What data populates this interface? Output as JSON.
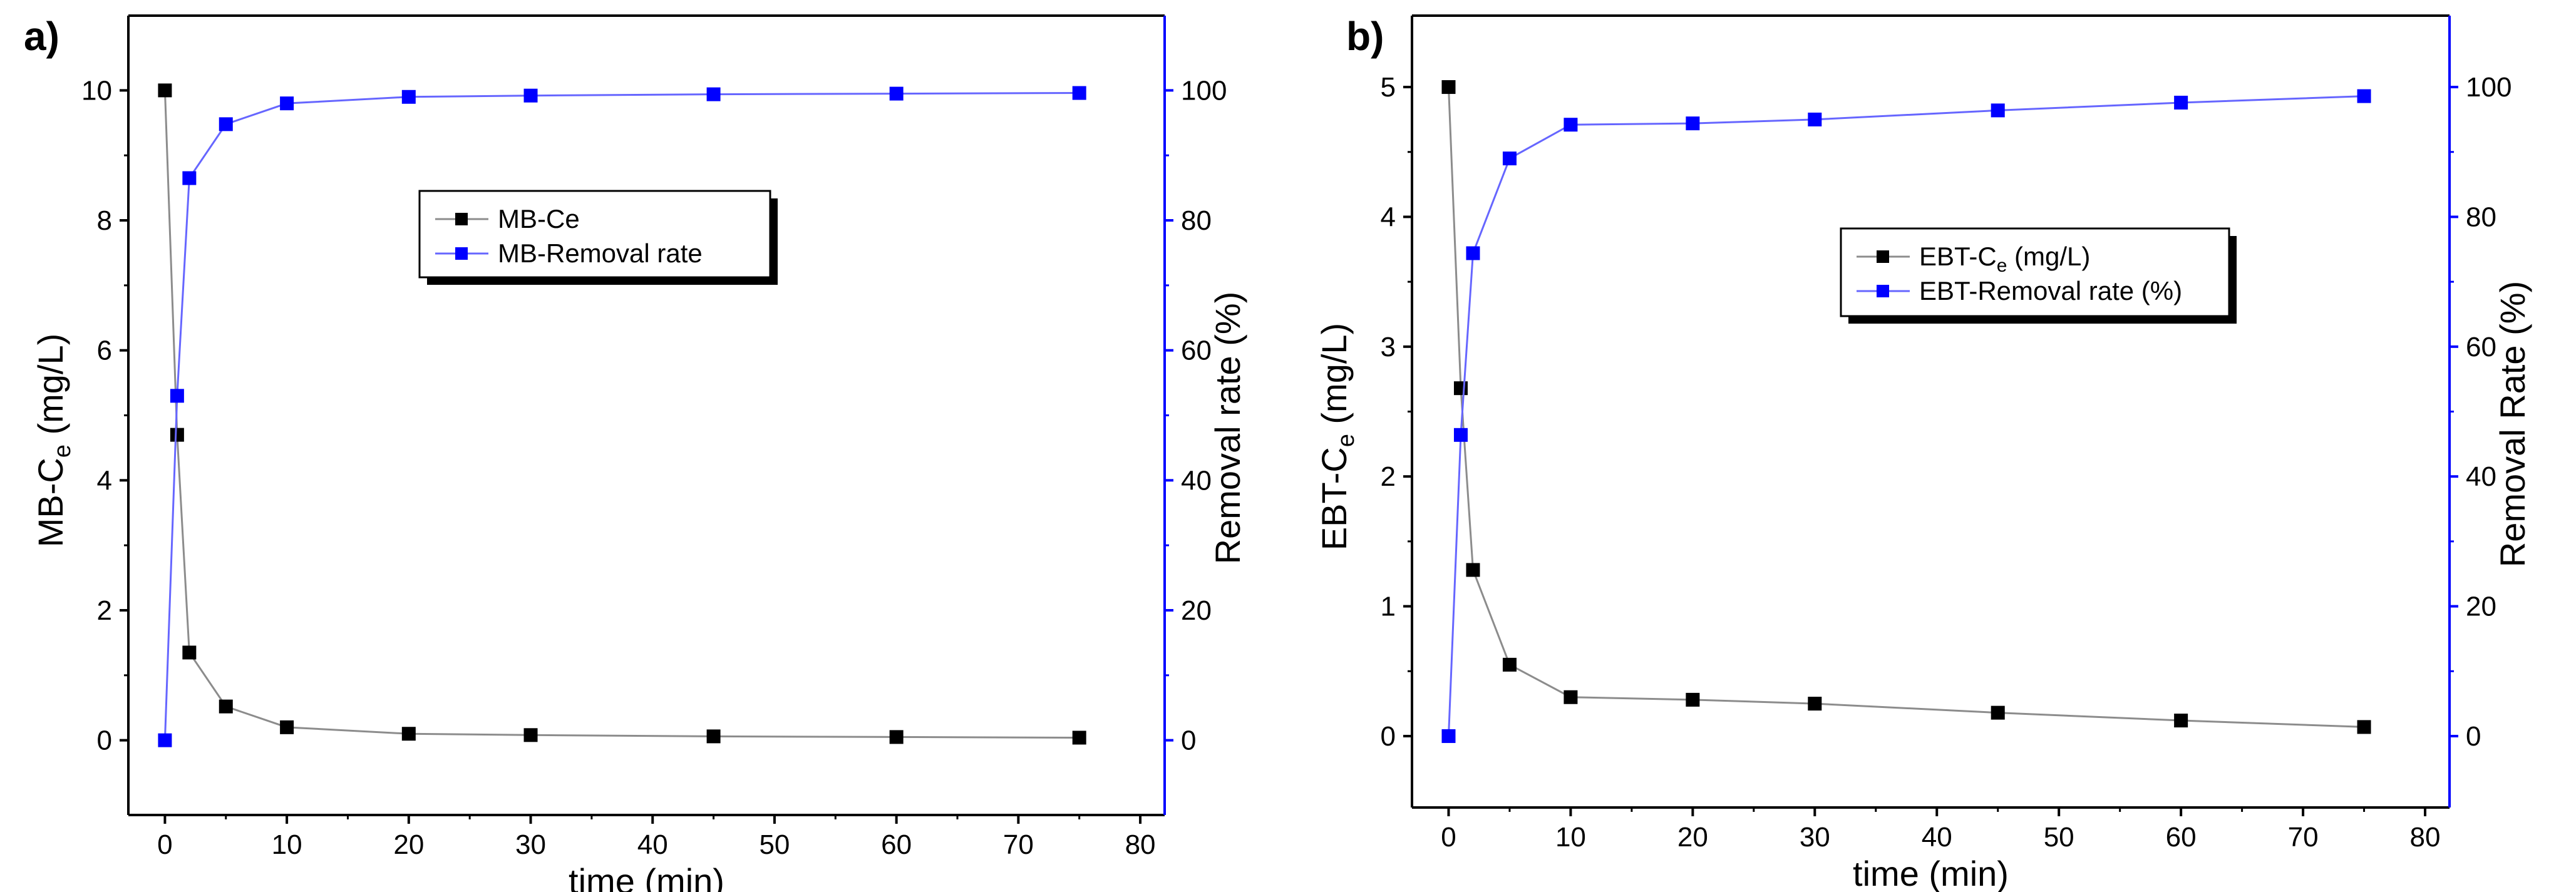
{
  "chart_data": [
    {
      "type": "line",
      "panel_label": "a)",
      "xlabel": "time (min)",
      "ylabel_prefix": "MB-C",
      "ylabel_sub": "e",
      "ylabel_suffix": " (mg/L)",
      "y2label": "Removal rate (%)",
      "xlim": [
        -3,
        82
      ],
      "ylim": [
        -1.15,
        11.15
      ],
      "y2lim": [
        -11.5,
        111.5
      ],
      "xticks": [
        0,
        10,
        20,
        30,
        40,
        50,
        60,
        70,
        80
      ],
      "yticks": [
        0,
        2,
        4,
        6,
        8,
        10
      ],
      "y2ticks": [
        0,
        20,
        40,
        60,
        80,
        100
      ],
      "x": [
        0,
        1,
        2,
        5,
        10,
        20,
        30,
        45,
        60,
        75
      ],
      "series": [
        {
          "name": "MB-Ce",
          "name_sub": "",
          "name_tail": "",
          "axis": "left",
          "color": "#000000",
          "line_color": "#8c8c8c",
          "values": [
            10,
            4.7,
            1.35,
            0.52,
            0.2,
            0.1,
            0.08,
            0.06,
            0.05,
            0.04
          ]
        },
        {
          "name": "MB-Removal rate",
          "name_sub": "",
          "name_tail": "",
          "axis": "right",
          "color": "#0000ff",
          "line_color": "#6666ff",
          "values": [
            0,
            53,
            86.5,
            94.8,
            98,
            99,
            99.2,
            99.4,
            99.5,
            99.6
          ]
        }
      ],
      "legend_placement": "upper-center"
    },
    {
      "type": "line",
      "panel_label": "b)",
      "xlabel": "time (min)",
      "ylabel_prefix": "EBT-C",
      "ylabel_sub": "e",
      "ylabel_suffix": " (mg/L)",
      "y2label": "Removal Rate (%)",
      "xlim": [
        -3,
        82
      ],
      "ylim": [
        -0.55,
        5.55
      ],
      "y2lim": [
        -11,
        111
      ],
      "xticks": [
        0,
        10,
        20,
        30,
        40,
        50,
        60,
        70,
        80
      ],
      "yticks": [
        0,
        1,
        2,
        3,
        4,
        5
      ],
      "y2ticks": [
        0,
        20,
        40,
        60,
        80,
        100
      ],
      "x": [
        0,
        1,
        2,
        5,
        10,
        20,
        30,
        45,
        60,
        75
      ],
      "series": [
        {
          "name": "EBT-C",
          "name_sub": "e",
          "name_tail": " (mg/L)",
          "axis": "left",
          "color": "#000000",
          "line_color": "#8c8c8c",
          "values": [
            5,
            2.68,
            1.28,
            0.55,
            0.3,
            0.28,
            0.25,
            0.18,
            0.12,
            0.07
          ]
        },
        {
          "name": "EBT-Removal rate (%)",
          "name_sub": "",
          "name_tail": "",
          "axis": "right",
          "color": "#0000ff",
          "line_color": "#6666ff",
          "values": [
            0,
            46.4,
            74.4,
            89,
            94.2,
            94.4,
            95,
            96.4,
            97.6,
            98.6
          ]
        }
      ],
      "legend_placement": "center-right"
    }
  ]
}
